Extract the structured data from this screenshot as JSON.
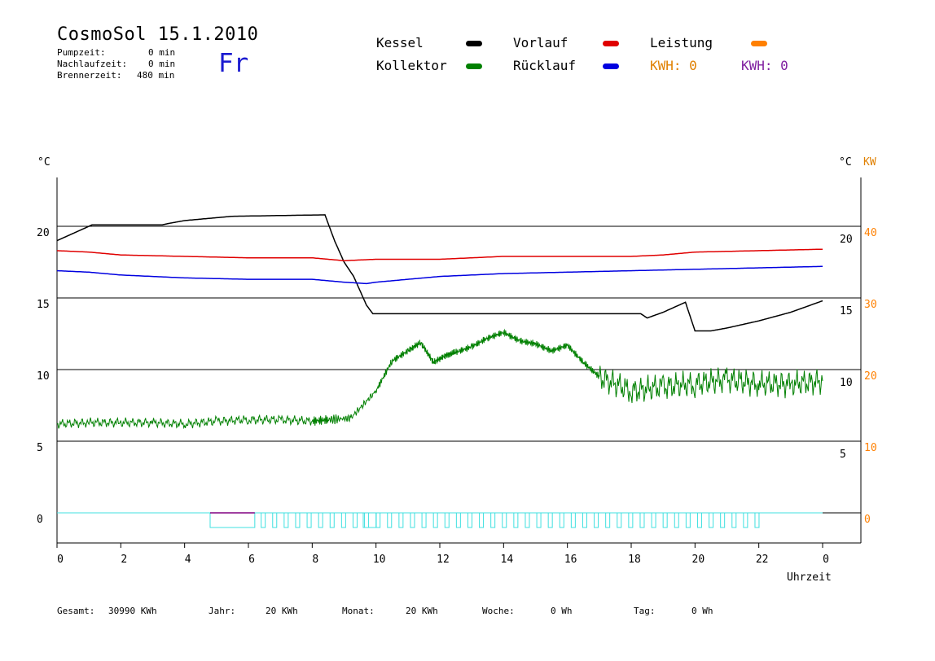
{
  "header": {
    "title": "CosmoSol 15.1.2010",
    "day": "Fr",
    "pump_label": "Pumpzeit:",
    "pump_value": "0 min",
    "nachlauf_label": "Nachlaufzeit:",
    "nachlauf_value": "0 min",
    "brenner_label": "Brennerzeit:",
    "brenner_value": "480 min"
  },
  "legend": {
    "kessel": "Kessel",
    "kollektor": "Kollektor",
    "vorlauf": "Vorlauf",
    "ruecklauf": "Rücklauf",
    "leistung": "Leistung",
    "kwh1": "KWH: 0",
    "kwh2": "KWH: 0"
  },
  "axes": {
    "left_unit": "°C",
    "right_unit": "°C",
    "right_unit_kw": "KW",
    "x_label": "Uhrzeit"
  },
  "footer": {
    "gesamt_label": "Gesamt:",
    "gesamt_value": "30990 KWh",
    "jahr_label": "Jahr:",
    "jahr_value": "20 KWh",
    "monat_label": "Monat:",
    "monat_value": "20 KWh",
    "woche_label": "Woche:",
    "woche_value": "0 Wh",
    "tag_label": "Tag:",
    "tag_value": "0 Wh"
  },
  "chart_data": {
    "type": "line",
    "xlabel": "Uhrzeit",
    "ylabel": "°C",
    "x_ticks": [
      "0",
      "2",
      "4",
      "6",
      "8",
      "10",
      "12",
      "14",
      "16",
      "18",
      "20",
      "22",
      "0"
    ],
    "xlim": [
      0,
      24
    ],
    "ylim": [
      -2,
      25
    ],
    "y_ticks_left": [
      0,
      5,
      10,
      15,
      20
    ],
    "y_ticks_right_c": [
      5,
      10,
      15,
      20
    ],
    "y_ticks_right_kw": [
      0,
      10,
      20,
      30,
      40
    ],
    "grid": "horizontal at 0, 5, 10, 15, 20",
    "colors": {
      "kessel": "#000000",
      "vorlauf": "#e00000",
      "ruecklauf": "#0000e0",
      "kollektor": "#008000",
      "leistung": "#ff8000",
      "kwh2": "#8020a0",
      "pump": "#40e0e0",
      "burner": "#800080"
    },
    "series": [
      {
        "name": "Kessel",
        "x": [
          0,
          0.5,
          1.0,
          1.1,
          3.3,
          3.5,
          4,
          5,
          5.5,
          8.4,
          8.5,
          8.7,
          9.0,
          9.3,
          9.5,
          9.7,
          9.9,
          10,
          18.3,
          18.5,
          19.0,
          19.7,
          20.0,
          20.5,
          21,
          22,
          23,
          24
        ],
        "y": [
          19.0,
          19.5,
          20.0,
          20.1,
          20.1,
          20.2,
          20.4,
          20.6,
          20.7,
          20.8,
          20.2,
          19.0,
          17.5,
          16.5,
          15.5,
          14.5,
          13.9,
          13.9,
          13.9,
          13.6,
          14.0,
          14.7,
          12.7,
          12.7,
          12.9,
          13.4,
          14.0,
          14.8
        ]
      },
      {
        "name": "Vorlauf",
        "x": [
          0,
          1,
          2,
          4,
          6,
          8,
          9,
          10,
          12,
          14,
          16,
          18,
          19,
          20,
          22,
          24
        ],
        "y": [
          18.3,
          18.2,
          18.0,
          17.9,
          17.8,
          17.8,
          17.6,
          17.7,
          17.7,
          17.9,
          17.9,
          17.9,
          18.0,
          18.2,
          18.3,
          18.4
        ]
      },
      {
        "name": "Rücklauf",
        "x": [
          0,
          1,
          2,
          4,
          6,
          8,
          9,
          9.7,
          10,
          12,
          14,
          16,
          18,
          20,
          22,
          24
        ],
        "y": [
          16.9,
          16.8,
          16.6,
          16.4,
          16.3,
          16.3,
          16.1,
          16.0,
          16.1,
          16.5,
          16.7,
          16.8,
          16.9,
          17.0,
          17.1,
          17.2
        ]
      },
      {
        "name": "Kollektor",
        "x": [
          0,
          1,
          2,
          3,
          4,
          5,
          6,
          7,
          8,
          8.5,
          9.2,
          10.0,
          10.5,
          11.0,
          11.4,
          11.8,
          12.2,
          12.5,
          13.0,
          13.5,
          14.0,
          14.5,
          15.0,
          15.5,
          16.0,
          16.5,
          17.0,
          18.0,
          19.0,
          20.0,
          21.0,
          22.0,
          23.0,
          24.0
        ],
        "y": [
          6.2,
          6.3,
          6.3,
          6.3,
          6.2,
          6.4,
          6.5,
          6.5,
          6.4,
          6.5,
          6.6,
          8.5,
          10.6,
          11.3,
          11.9,
          10.5,
          11.0,
          11.2,
          11.6,
          12.2,
          12.6,
          12.0,
          11.8,
          11.3,
          11.7,
          10.5,
          9.5,
          8.5,
          8.8,
          9.0,
          9.3,
          9.0,
          9.0,
          9.2
        ]
      }
    ],
    "pump_on": [
      [
        4.8,
        6.2
      ],
      [
        9.3,
        9.8
      ],
      [
        6.2,
        22.0
      ]
    ]
  }
}
